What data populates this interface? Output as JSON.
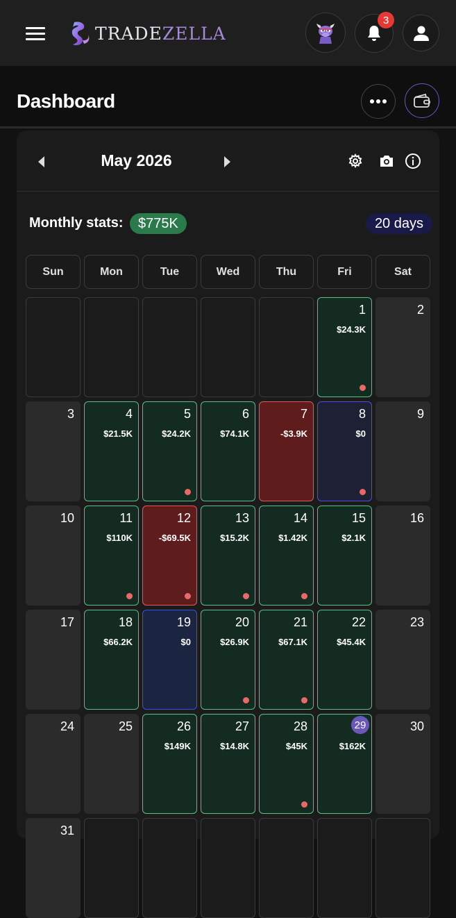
{
  "header": {
    "logo_text_a": "TRADE",
    "logo_text_b": "ZELLA",
    "notifications_count": "3",
    "page_title": "Dashboard"
  },
  "calendar": {
    "month_label": "May 2026",
    "stats_label": "Monthly stats:",
    "monthly_pnl": "$775K",
    "trading_days": "20 days",
    "weekdays": [
      "Sun",
      "Mon",
      "Tue",
      "Wed",
      "Thu",
      "Fri",
      "Sat"
    ],
    "colors": {
      "profit": "#5dbd86",
      "loss": "#e05a5a",
      "breakeven": "#4a52d8",
      "accent": "#6a58b8"
    },
    "days": [
      {
        "day": "1",
        "value": "$24.3K",
        "status": "profit",
        "note_dot": true
      },
      {
        "day": "2",
        "value": "",
        "status": "weekend",
        "note_dot": false
      },
      {
        "day": "3",
        "value": "",
        "status": "weekend",
        "note_dot": false
      },
      {
        "day": "4",
        "value": "$21.5K",
        "status": "profit",
        "note_dot": false
      },
      {
        "day": "5",
        "value": "$24.2K",
        "status": "profit",
        "note_dot": true
      },
      {
        "day": "6",
        "value": "$74.1K",
        "status": "profit",
        "note_dot": false
      },
      {
        "day": "7",
        "value": "-$3.9K",
        "status": "loss",
        "note_dot": false
      },
      {
        "day": "8",
        "value": "$0",
        "status": "breakeven",
        "note_dot": true
      },
      {
        "day": "9",
        "value": "",
        "status": "weekend",
        "note_dot": false
      },
      {
        "day": "10",
        "value": "",
        "status": "weekend",
        "note_dot": false
      },
      {
        "day": "11",
        "value": "$110K",
        "status": "profit",
        "note_dot": true
      },
      {
        "day": "12",
        "value": "-$69.5K",
        "status": "loss",
        "note_dot": true
      },
      {
        "day": "13",
        "value": "$15.2K",
        "status": "profit",
        "note_dot": true
      },
      {
        "day": "14",
        "value": "$1.42K",
        "status": "profit",
        "note_dot": true
      },
      {
        "day": "15",
        "value": "$2.1K",
        "status": "profit",
        "note_dot": false
      },
      {
        "day": "16",
        "value": "",
        "status": "weekend",
        "note_dot": false
      },
      {
        "day": "17",
        "value": "",
        "status": "weekend",
        "note_dot": false
      },
      {
        "day": "18",
        "value": "$66.2K",
        "status": "profit",
        "note_dot": false
      },
      {
        "day": "19",
        "value": "$0",
        "status": "breakeven-alt",
        "note_dot": false
      },
      {
        "day": "20",
        "value": "$26.9K",
        "status": "profit",
        "note_dot": true
      },
      {
        "day": "21",
        "value": "$67.1K",
        "status": "profit",
        "note_dot": true
      },
      {
        "day": "22",
        "value": "$45.4K",
        "status": "profit",
        "note_dot": false
      },
      {
        "day": "23",
        "value": "",
        "status": "weekend",
        "note_dot": false
      },
      {
        "day": "24",
        "value": "",
        "status": "weekend",
        "note_dot": false
      },
      {
        "day": "25",
        "value": "",
        "status": "weekend",
        "note_dot": false
      },
      {
        "day": "26",
        "value": "$149K",
        "status": "profit",
        "note_dot": false
      },
      {
        "day": "27",
        "value": "$14.8K",
        "status": "profit",
        "note_dot": false
      },
      {
        "day": "28",
        "value": "$45K",
        "status": "profit",
        "note_dot": true
      },
      {
        "day": "29",
        "value": "$162K",
        "status": "profit",
        "note_dot": false,
        "today": true
      },
      {
        "day": "30",
        "value": "",
        "status": "weekend",
        "note_dot": false
      },
      {
        "day": "31",
        "value": "",
        "status": "weekend",
        "note_dot": false
      }
    ]
  }
}
